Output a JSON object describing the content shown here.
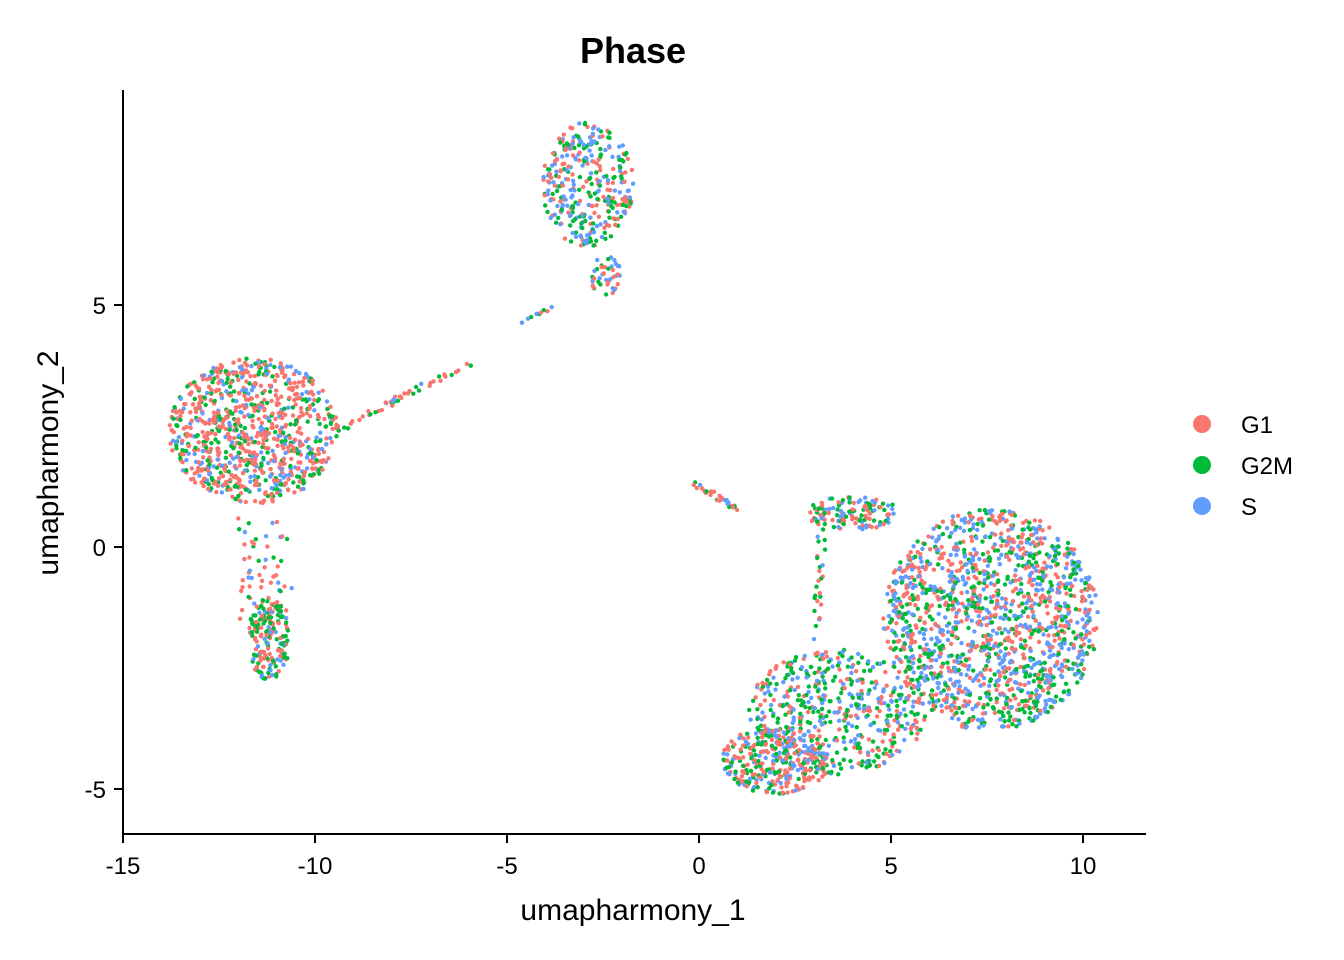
{
  "chart_data": {
    "type": "scatter",
    "title": "Phase",
    "xlabel": "umapharmony_1",
    "ylabel": "umapharmony_2",
    "xlim": [
      -15,
      11.5
    ],
    "ylim": [
      -5.9,
      9.4
    ],
    "xticks": [
      -15,
      -10,
      -5,
      0,
      5,
      10
    ],
    "xtick_labels": [
      "-15",
      "-10",
      "-5",
      "0",
      "5",
      "10"
    ],
    "yticks": [
      -5,
      0,
      5
    ],
    "ytick_labels": [
      "-5",
      "0",
      "5"
    ],
    "grid": false,
    "legend_placement": "right",
    "series": [
      {
        "name": "G1",
        "color": "#F8766D"
      },
      {
        "name": "G2M",
        "color": "#00BA38"
      },
      {
        "name": "S",
        "color": "#619CFF"
      }
    ],
    "clusters": [
      {
        "shape": "ellipse",
        "center": [
          -11.6,
          2.4
        ],
        "radius": [
          2.2,
          1.5
        ],
        "count": 900,
        "weights": [
          0.55,
          0.25,
          0.2
        ]
      },
      {
        "shape": "box",
        "x": [
          -12.0,
          -10.6
        ],
        "y": [
          -1.5,
          0.6
        ],
        "count": 60,
        "weights": [
          0.5,
          0.3,
          0.2
        ]
      },
      {
        "shape": "ellipse",
        "center": [
          -11.2,
          -1.9
        ],
        "radius": [
          0.55,
          0.85
        ],
        "count": 170,
        "weights": [
          0.45,
          0.4,
          0.15
        ]
      },
      {
        "shape": "line",
        "from": [
          -9.5,
          2.4
        ],
        "to": [
          -5.9,
          3.8
        ],
        "width": 0.15,
        "count": 45,
        "weights": [
          0.7,
          0.2,
          0.1
        ]
      },
      {
        "shape": "line",
        "from": [
          -5.0,
          4.5
        ],
        "to": [
          -3.4,
          5.1
        ],
        "width": 0.1,
        "count": 10,
        "weights": [
          0.4,
          0.4,
          0.2
        ]
      },
      {
        "shape": "ellipse",
        "center": [
          -2.9,
          7.5
        ],
        "radius": [
          1.2,
          1.3
        ],
        "count": 330,
        "weights": [
          0.3,
          0.3,
          0.4
        ]
      },
      {
        "shape": "ellipse",
        "center": [
          -2.4,
          5.6
        ],
        "radius": [
          0.45,
          0.4
        ],
        "count": 40,
        "weights": [
          0.3,
          0.35,
          0.35
        ]
      },
      {
        "shape": "line",
        "from": [
          -0.1,
          1.3
        ],
        "to": [
          1.0,
          0.8
        ],
        "width": 0.12,
        "count": 30,
        "weights": [
          0.5,
          0.3,
          0.2
        ]
      },
      {
        "shape": "ellipse",
        "center": [
          7.6,
          -1.5
        ],
        "radius": [
          2.8,
          2.3
        ],
        "count": 1500,
        "weights": [
          0.35,
          0.3,
          0.35
        ]
      },
      {
        "shape": "ellipse",
        "center": [
          3.6,
          -3.4
        ],
        "radius": [
          2.3,
          1.3
        ],
        "count": 500,
        "weights": [
          0.3,
          0.4,
          0.3
        ]
      },
      {
        "shape": "ellipse",
        "center": [
          2.0,
          -4.4
        ],
        "radius": [
          1.4,
          0.7
        ],
        "count": 320,
        "weights": [
          0.45,
          0.25,
          0.3
        ]
      },
      {
        "shape": "ellipse",
        "center": [
          4.0,
          0.7
        ],
        "radius": [
          1.2,
          0.35
        ],
        "count": 120,
        "weights": [
          0.35,
          0.35,
          0.3
        ]
      },
      {
        "shape": "line",
        "from": [
          3.2,
          0.9
        ],
        "to": [
          3.1,
          -2.0
        ],
        "width": 0.25,
        "count": 30,
        "weights": [
          0.3,
          0.5,
          0.2
        ]
      }
    ]
  }
}
